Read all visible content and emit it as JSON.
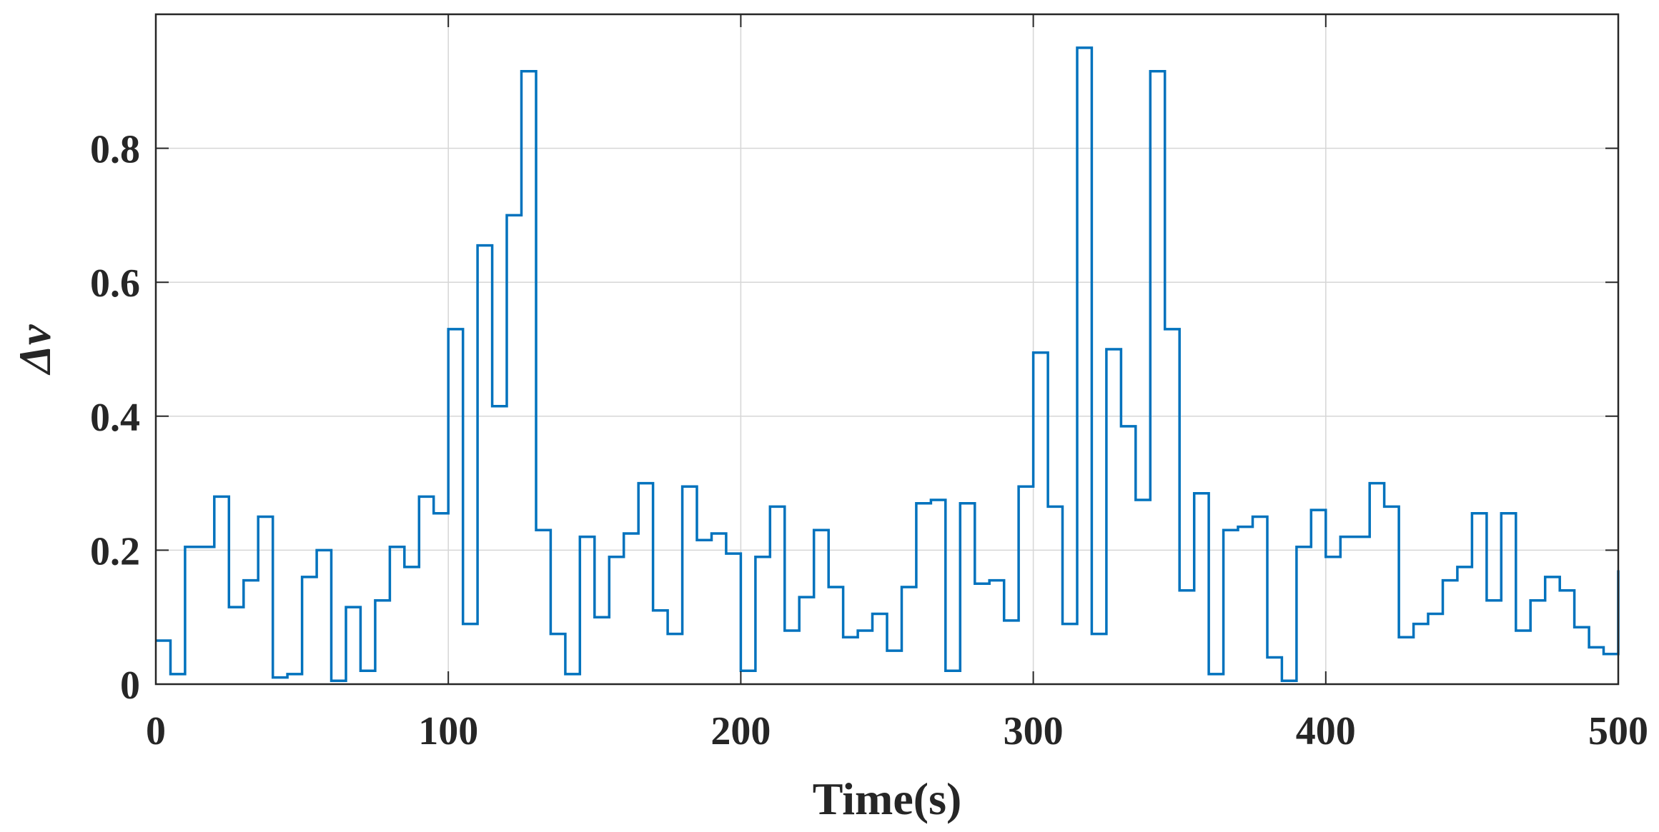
{
  "chart_data": {
    "type": "line",
    "step": true,
    "title": "",
    "xlabel": "Time(s)",
    "ylabel": "Δv",
    "xlim": [
      0,
      500
    ],
    "ylim": [
      0,
      1
    ],
    "grid": true,
    "line_color": "#0072BD",
    "x_ticks": [
      0,
      100,
      200,
      300,
      400,
      500
    ],
    "x_tick_labels": [
      "0",
      "100",
      "200",
      "300",
      "400",
      "500"
    ],
    "y_ticks": [
      0,
      0.2,
      0.4,
      0.6,
      0.8
    ],
    "y_tick_labels": [
      "0",
      "0.2",
      "0.4",
      "0.6",
      "0.8"
    ],
    "series": [
      {
        "x": [
          0,
          5,
          10,
          20,
          25,
          30,
          35,
          40,
          45,
          50,
          55,
          60,
          65,
          70,
          75,
          80,
          85,
          90,
          95,
          100,
          105,
          110,
          115,
          120,
          125,
          130,
          135,
          140,
          145,
          150,
          155,
          160,
          165,
          170,
          175,
          180,
          185,
          190,
          195,
          200,
          205,
          210,
          215,
          220,
          225,
          230,
          235,
          240,
          245,
          250,
          255,
          260,
          265,
          270,
          275,
          280,
          285,
          290,
          295,
          300,
          305,
          310,
          315,
          320,
          325,
          330,
          335,
          340,
          345,
          350,
          355,
          360,
          365,
          370,
          375,
          380,
          385,
          390,
          395,
          400,
          405,
          410,
          415,
          420,
          425,
          430,
          435,
          440,
          445,
          450,
          455,
          460,
          465,
          470,
          475,
          480,
          485,
          490,
          495
        ],
        "y": [
          0.065,
          0.015,
          0.205,
          0.28,
          0.115,
          0.155,
          0.25,
          0.01,
          0.015,
          0.16,
          0.2,
          0.005,
          0.115,
          0.02,
          0.125,
          0.205,
          0.175,
          0.28,
          0.255,
          0.53,
          0.09,
          0.655,
          0.415,
          0.7,
          0.915,
          0.23,
          0.075,
          0.015,
          0.22,
          0.1,
          0.19,
          0.225,
          0.3,
          0.11,
          0.075,
          0.295,
          0.215,
          0.225,
          0.195,
          0.02,
          0.19,
          0.265,
          0.08,
          0.13,
          0.23,
          0.145,
          0.07,
          0.08,
          0.105,
          0.05,
          0.145,
          0.27,
          0.275,
          0.02,
          0.27,
          0.15,
          0.155,
          0.095,
          0.295,
          0.495,
          0.265,
          0.09,
          0.95,
          0.075,
          0.5,
          0.385,
          0.275,
          0.915,
          0.53,
          0.14,
          0.285,
          0.015,
          0.23,
          0.235,
          0.25,
          0.04,
          0.005,
          0.205,
          0.26,
          0.19,
          0.22,
          0.22,
          0.3,
          0.265,
          0.07,
          0.09,
          0.105,
          0.155,
          0.175,
          0.255,
          0.125,
          0.255,
          0.08,
          0.125,
          0.16,
          0.14,
          0.085,
          0.055,
          0.045
        ],
        "end_value": 0.17
      }
    ]
  }
}
